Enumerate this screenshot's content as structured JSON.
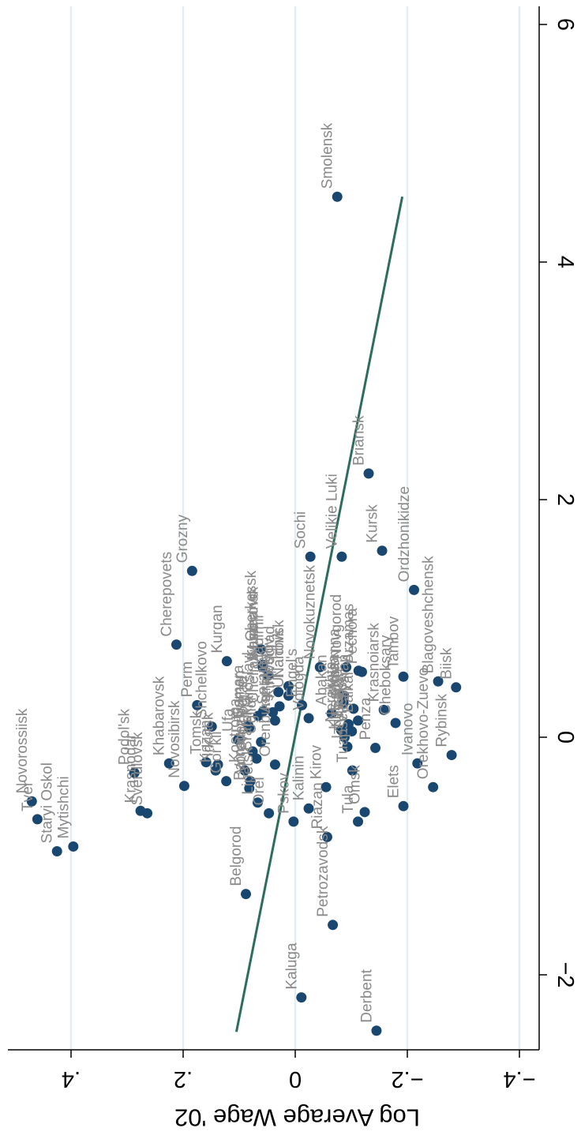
{
  "chart_data": {
    "type": "scatter",
    "orientation": "rotated-90-cw",
    "ylabel": "Log Average Wage '02",
    "xlabel": "",
    "xlim": [
      -2.5,
      6.2
    ],
    "ylim": [
      -0.44,
      0.51
    ],
    "x_ticks": [
      {
        "value": -2,
        "label": "−2"
      },
      {
        "value": 0,
        "label": "0"
      },
      {
        "value": 2,
        "label": "2"
      },
      {
        "value": 4,
        "label": "4"
      },
      {
        "value": 6,
        "label": "6"
      }
    ],
    "y_ticks": [
      {
        "value": 0.4,
        "label": ".4"
      },
      {
        "value": 0.2,
        "label": ".2"
      },
      {
        "value": 0,
        "label": "0"
      },
      {
        "value": -0.2,
        "label": "−.2"
      },
      {
        "value": -0.4,
        "label": "−.4"
      }
    ],
    "grid": true,
    "fit_line": {
      "x": [
        -2.48,
        4.55
      ],
      "y": [
        0.105,
        -0.191
      ]
    },
    "colors": {
      "background": "#ffffff",
      "grid": "#e2eef1",
      "marker": "#1a476f",
      "fit_line": "#2d6d5e",
      "label": "#8a8a8a",
      "axis": "#000000"
    },
    "points": [
      {
        "label": "Smolensk",
        "x": 4.55,
        "y": -0.075
      },
      {
        "label": "Briansk",
        "x": 2.22,
        "y": -0.131
      },
      {
        "label": "Kursk",
        "x": 1.57,
        "y": -0.155
      },
      {
        "label": "Velikie Luki",
        "x": 1.52,
        "y": -0.083
      },
      {
        "label": "Sochi",
        "x": 1.52,
        "y": -0.027
      },
      {
        "label": "Ordzhonikidze",
        "x": 1.24,
        "y": -0.212
      },
      {
        "label": "Grozny",
        "x": 1.4,
        "y": 0.184
      },
      {
        "label": "Cherepovets",
        "x": 0.78,
        "y": 0.212
      },
      {
        "label": "Kurgan",
        "x": 0.64,
        "y": 0.122
      },
      {
        "label": "Cherkassk",
        "x": 0.74,
        "y": 0.061
      },
      {
        "label": "Kemerovo",
        "x": 0.59,
        "y": 0.058
      },
      {
        "label": "Vladimir",
        "x": 0.52,
        "y": 0.048
      },
      {
        "label": "Novgorod",
        "x": 0.59,
        "y": -0.091
      },
      {
        "label": "Arzamas",
        "x": 0.56,
        "y": -0.113
      },
      {
        "label": "Tambov",
        "x": 0.51,
        "y": -0.193
      },
      {
        "label": "Blagoveshchensk",
        "x": 0.47,
        "y": -0.255
      },
      {
        "label": "Biisk",
        "x": 0.42,
        "y": -0.287
      },
      {
        "label": "Rybinsk",
        "x": -0.15,
        "y": -0.279
      },
      {
        "label": "Orekhovo-Zuevo",
        "x": -0.42,
        "y": -0.246
      },
      {
        "label": "Ivanovo",
        "x": -0.22,
        "y": -0.218
      },
      {
        "label": "Elets",
        "x": -0.58,
        "y": -0.193
      },
      {
        "label": "Cheboksary",
        "x": 0.12,
        "y": -0.179
      },
      {
        "label": "Krasnoiarsk",
        "x": 0.23,
        "y": -0.158
      },
      {
        "label": "Penza",
        "x": -0.09,
        "y": -0.143
      },
      {
        "label": "Omsk",
        "x": -0.63,
        "y": -0.124
      },
      {
        "label": "Tula",
        "x": -0.71,
        "y": -0.112
      },
      {
        "label": "Khabarovsk",
        "x": -0.22,
        "y": 0.225
      },
      {
        "label": "Podol'sk",
        "x": -0.3,
        "y": 0.287
      },
      {
        "label": "Krasnodar",
        "x": -0.62,
        "y": 0.276
      },
      {
        "label": "Sverdlovsk",
        "x": -0.64,
        "y": 0.264
      },
      {
        "label": "Novosibirsk",
        "x": -0.41,
        "y": 0.198
      },
      {
        "label": "Perm",
        "x": 0.27,
        "y": 0.175
      },
      {
        "label": "Tomsk",
        "x": -0.21,
        "y": 0.159
      },
      {
        "label": "Irkutsk",
        "x": -0.23,
        "y": 0.138
      },
      {
        "label": "Shchelkovo",
        "x": 0.09,
        "y": 0.149
      },
      {
        "label": "Kazan",
        "x": -0.28,
        "y": 0.142
      },
      {
        "label": "Gor'kii",
        "x": -0.37,
        "y": 0.123
      },
      {
        "label": "Novorossiisk",
        "x": -0.54,
        "y": 0.47
      },
      {
        "label": "Tver",
        "x": -0.69,
        "y": 0.46
      },
      {
        "label": "Staryi Oskol",
        "x": -0.96,
        "y": 0.425
      },
      {
        "label": "Mytishchi",
        "x": -0.92,
        "y": 0.396
      },
      {
        "label": "Belgorod",
        "x": -1.32,
        "y": 0.088
      },
      {
        "label": "Kaluga",
        "x": -2.19,
        "y": -0.011
      },
      {
        "label": "Derbent",
        "x": -2.47,
        "y": -0.145
      },
      {
        "label": "Petrozavodsk",
        "x": -1.58,
        "y": -0.067
      },
      {
        "label": "Pskov",
        "x": -0.71,
        "y": 0.003
      },
      {
        "label": "Kalinin",
        "x": -0.6,
        "y": -0.024
      },
      {
        "label": "Riazan",
        "x": -0.84,
        "y": -0.057
      },
      {
        "label": "Kirov",
        "x": -0.42,
        "y": -0.055
      },
      {
        "label": "Ul'ianovsk",
        "x": 0.35,
        "y": 0.012
      },
      {
        "label": "Orel",
        "x": -0.64,
        "y": 0.047
      },
      {
        "label": "Lipetsk",
        "x": -0.55,
        "y": 0.067
      },
      {
        "label": "Barnaul",
        "x": -0.43,
        "y": 0.082
      },
      {
        "label": "Voronezh",
        "x": -0.37,
        "y": 0.08
      },
      {
        "label": "Kostroma",
        "x": -0.28,
        "y": 0.09
      },
      {
        "label": "Volgograd",
        "x": -0.12,
        "y": 0.076
      },
      {
        "label": "Samara",
        "x": 0.1,
        "y": 0.084
      },
      {
        "label": "Ufa",
        "x": -0.02,
        "y": 0.102
      },
      {
        "label": "Iaroslavl",
        "x": 0.18,
        "y": 0.066
      },
      {
        "label": "Saratov",
        "x": 0.21,
        "y": 0.04
      },
      {
        "label": "Orenburg",
        "x": -0.23,
        "y": 0.036
      },
      {
        "label": "Cheliabinsk",
        "x": 0.22,
        "y": 0.057
      },
      {
        "label": "Rostov",
        "x": 0.38,
        "y": 0.03
      },
      {
        "label": "Kirovograd",
        "x": 0.26,
        "y": 0.028
      },
      {
        "label": "Astrakhan",
        "x": 0.14,
        "y": 0.036
      },
      {
        "label": "Nalchik",
        "x": 0.43,
        "y": 0.012
      },
      {
        "label": "Tiumen",
        "x": 0.08,
        "y": 0.082
      },
      {
        "label": "Murmansk",
        "x": 0.61,
        "y": 0.058
      },
      {
        "label": "Vologda",
        "x": 0.16,
        "y": -0.024
      },
      {
        "label": "Engel's",
        "x": 0.27,
        "y": -0.012
      },
      {
        "label": "Novokuznetsk",
        "x": 0.59,
        "y": -0.044
      },
      {
        "label": "Abakan",
        "x": 0.2,
        "y": -0.065
      },
      {
        "label": "Izhevsk",
        "x": -0.08,
        "y": -0.093
      },
      {
        "label": "Tuapse",
        "x": -0.28,
        "y": -0.102
      },
      {
        "label": "Vitebsk",
        "x": 0.05,
        "y": -0.101
      },
      {
        "label": "Kolomna",
        "x": 0.35,
        "y": -0.087
      },
      {
        "label": "Kineshma",
        "x": 0.0,
        "y": -0.088
      },
      {
        "label": "Baikal",
        "x": 0.14,
        "y": -0.112
      },
      {
        "label": "Vyksa",
        "x": 0.29,
        "y": -0.086
      },
      {
        "label": "Pechora",
        "x": 0.55,
        "y": -0.119
      },
      {
        "label": "Nerekhta",
        "x": 0.06,
        "y": -0.082
      },
      {
        "label": "Sysran",
        "x": 0.24,
        "y": -0.104
      },
      {
        "label": "Gubkin",
        "x": 0.11,
        "y": -0.095
      },
      {
        "label": "Bratsk",
        "x": -0.18,
        "y": 0.069
      },
      {
        "label": "Uglich",
        "x": -0.04,
        "y": 0.061
      }
    ]
  }
}
